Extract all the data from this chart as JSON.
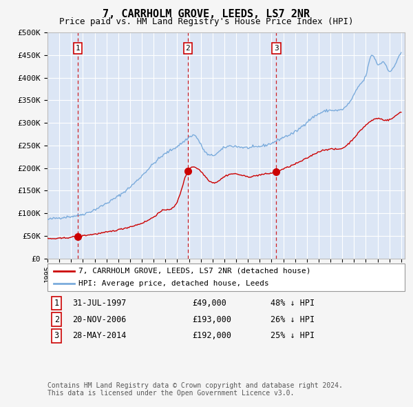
{
  "title": "7, CARRHOLM GROVE, LEEDS, LS7 2NR",
  "subtitle": "Price paid vs. HM Land Registry's House Price Index (HPI)",
  "ylim": [
    0,
    500000
  ],
  "yticks": [
    0,
    50000,
    100000,
    150000,
    200000,
    250000,
    300000,
    350000,
    400000,
    450000,
    500000
  ],
  "ytick_labels": [
    "£0",
    "£50K",
    "£100K",
    "£150K",
    "£200K",
    "£250K",
    "£300K",
    "£350K",
    "£400K",
    "£450K",
    "£500K"
  ],
  "fig_bg_color": "#f5f5f5",
  "plot_bg_color": "#dce6f5",
  "grid_color": "#ffffff",
  "property_color": "#cc0000",
  "hpi_color": "#7aabdc",
  "legend_label_property": "7, CARRHOLM GROVE, LEEDS, LS7 2NR (detached house)",
  "legend_label_hpi": "HPI: Average price, detached house, Leeds",
  "sale_dates": [
    1997.58,
    2006.89,
    2014.41
  ],
  "sale_prices": [
    49000,
    193000,
    192000
  ],
  "sale_labels": [
    "1",
    "2",
    "3"
  ],
  "table_rows": [
    [
      "1",
      "31-JUL-1997",
      "£49,000",
      "48% ↓ HPI"
    ],
    [
      "2",
      "20-NOV-2006",
      "£193,000",
      "26% ↓ HPI"
    ],
    [
      "3",
      "28-MAY-2014",
      "£192,000",
      "25% ↓ HPI"
    ]
  ],
  "footer_text": "Contains HM Land Registry data © Crown copyright and database right 2024.\nThis data is licensed under the Open Government Licence v3.0.",
  "hpi_anchors_x": [
    1995.0,
    1996.0,
    1997.0,
    1998.0,
    1999.0,
    2000.0,
    2001.0,
    2002.0,
    2003.0,
    2004.0,
    2005.0,
    2006.0,
    2007.0,
    2007.5,
    2008.0,
    2008.5,
    2009.0,
    2009.5,
    2010.0,
    2011.0,
    2012.0,
    2013.0,
    2014.0,
    2015.0,
    2016.0,
    2017.0,
    2018.0,
    2019.0,
    2020.0,
    2021.0,
    2021.5,
    2022.0,
    2022.5,
    2023.0,
    2023.5,
    2024.0,
    2024.5,
    2025.0
  ],
  "hpi_anchors_y": [
    86000,
    90000,
    93000,
    98000,
    108000,
    122000,
    138000,
    158000,
    183000,
    210000,
    232000,
    248000,
    268000,
    272000,
    252000,
    232000,
    228000,
    235000,
    245000,
    248000,
    245000,
    248000,
    255000,
    268000,
    280000,
    302000,
    320000,
    328000,
    330000,
    362000,
    385000,
    405000,
    450000,
    430000,
    435000,
    415000,
    430000,
    455000
  ],
  "prop_anchors_x": [
    1995.0,
    1997.0,
    1997.58,
    2000.0,
    2002.0,
    2004.0,
    2005.0,
    2006.0,
    2006.89,
    2007.5,
    2008.0,
    2008.5,
    2009.0,
    2010.0,
    2011.0,
    2012.0,
    2013.0,
    2014.0,
    2014.41,
    2015.0,
    2016.0,
    2017.0,
    2018.0,
    2019.0,
    2020.0,
    2021.0,
    2022.0,
    2022.5,
    2023.0,
    2023.5,
    2024.0,
    2024.5,
    2025.0
  ],
  "prop_anchors_y": [
    44000,
    47000,
    49000,
    58000,
    70000,
    92000,
    108000,
    125000,
    193000,
    202000,
    193000,
    178000,
    168000,
    181000,
    187000,
    181000,
    185000,
    189000,
    192000,
    198000,
    209000,
    222000,
    236000,
    242000,
    244000,
    267000,
    295000,
    305000,
    310000,
    307000,
    307000,
    315000,
    325000
  ]
}
